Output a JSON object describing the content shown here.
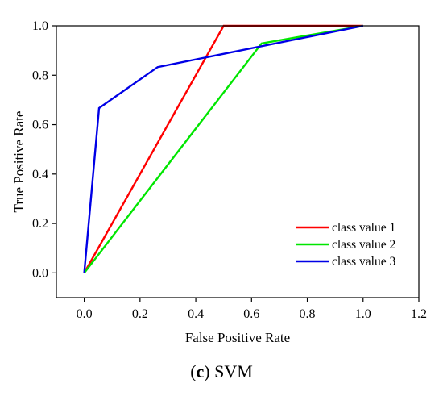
{
  "caption": {
    "letter": "c",
    "text": "SVM"
  },
  "chart_data": {
    "type": "line",
    "xlabel": "False Positive Rate",
    "ylabel": "True Positive Rate",
    "xlim": [
      -0.1,
      1.2
    ],
    "ylim": [
      -0.1,
      1.0
    ],
    "xticks": [
      0.0,
      0.2,
      0.4,
      0.6,
      0.8,
      1.0,
      1.2
    ],
    "yticks": [
      0.0,
      0.2,
      0.4,
      0.6,
      0.8,
      1.0
    ],
    "xtick_labels": [
      "0.0",
      "0.2",
      "0.4",
      "0.6",
      "0.8",
      "1.0",
      "1.2"
    ],
    "ytick_labels": [
      "0.0",
      "0.2",
      "0.4",
      "0.6",
      "0.8",
      "1.0"
    ],
    "grid": false,
    "legend_position": "lower-right",
    "series": [
      {
        "name": "class value 1",
        "color": "#ff0000",
        "x": [
          0.0,
          0.5,
          1.0
        ],
        "y": [
          0.0,
          1.0,
          1.0
        ]
      },
      {
        "name": "class value 2",
        "color": "#00e600",
        "x": [
          0.0,
          0.636,
          1.0
        ],
        "y": [
          0.0,
          0.929,
          1.0
        ]
      },
      {
        "name": "class value 3",
        "color": "#0000e6",
        "x": [
          0.0,
          0.053,
          0.263,
          1.0
        ],
        "y": [
          0.0,
          0.667,
          0.833,
          1.0
        ]
      }
    ]
  }
}
